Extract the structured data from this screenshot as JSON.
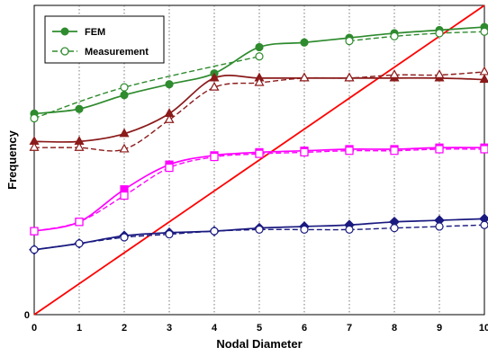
{
  "chart_data": {
    "type": "line",
    "xlabel": "Nodal Diameter",
    "ylabel": "Frequency",
    "xlim": [
      0,
      10
    ],
    "ylim": [
      0,
      100
    ],
    "x_ticks": [
      "0",
      "1",
      "2",
      "3",
      "4",
      "5",
      "6",
      "7",
      "8",
      "9",
      "10"
    ],
    "y_ticks": [
      "0"
    ],
    "grid": "vertical dotted lines at each nodal diameter",
    "legend_position": "top-left",
    "legend": [
      {
        "label": "FEM",
        "style": "solid",
        "marker": "filled-circle",
        "color": "#2e8b2e"
      },
      {
        "label": "Measurement",
        "style": "dashed",
        "marker": "open-circle",
        "color": "#2e8b2e"
      }
    ],
    "series": [
      {
        "family": "green",
        "kind": "FEM",
        "color": "#2e8b2e",
        "marker": "filled-circle",
        "x": [
          0,
          1,
          2,
          3,
          4,
          5,
          6,
          7,
          8,
          9,
          10
        ],
        "y": [
          65,
          66.5,
          71,
          74.5,
          78,
          86.5,
          88,
          89.5,
          91,
          92,
          93
        ]
      },
      {
        "family": "green",
        "kind": "Measurement",
        "color": "#2e8b2e",
        "marker": "open-circle",
        "x": [
          0,
          2,
          5
        ],
        "y": [
          63.5,
          73.5,
          83.5
        ],
        "x2": [
          7,
          8,
          9,
          10
        ],
        "y2": [
          88.5,
          90,
          91,
          91.5
        ]
      },
      {
        "family": "darkred",
        "kind": "FEM",
        "color": "#8b1a1a",
        "marker": "filled-triangle",
        "x": [
          0,
          1,
          2,
          3,
          4,
          5,
          6,
          7,
          8,
          9,
          10
        ],
        "y": [
          56,
          56,
          58.5,
          65,
          76.5,
          76.5,
          76.5,
          76.5,
          76.5,
          76.5,
          76
        ]
      },
      {
        "family": "darkred",
        "kind": "Measurement",
        "color": "#8b1a1a",
        "marker": "open-triangle",
        "x": [
          0,
          1,
          2,
          3,
          4,
          5,
          6,
          7,
          8,
          9,
          10
        ],
        "y": [
          54,
          54,
          53.5,
          63,
          73.5,
          75,
          76.5,
          76.5,
          77.5,
          77.5,
          78.5
        ]
      },
      {
        "family": "magenta",
        "kind": "FEM",
        "color": "#ff00ff",
        "marker": "filled-square",
        "x": [
          0,
          1,
          2,
          3,
          4,
          5,
          6,
          7,
          8,
          9,
          10
        ],
        "y": [
          27,
          30,
          40.5,
          48.5,
          51.5,
          52.5,
          53,
          53.5,
          53.5,
          54,
          54
        ]
      },
      {
        "family": "magenta",
        "kind": "Measurement",
        "color": "#ff00ff",
        "marker": "open-square",
        "x": [
          0,
          1,
          2,
          3,
          4,
          5,
          6,
          7,
          8,
          9,
          10
        ],
        "y": [
          27,
          30,
          38.5,
          47.5,
          51,
          52,
          52.5,
          53,
          53,
          53.5,
          53.5
        ]
      },
      {
        "family": "navy",
        "kind": "FEM",
        "color": "#1a1a80",
        "marker": "filled-diamond",
        "x": [
          0,
          1,
          2,
          3,
          4,
          5,
          6,
          7,
          8,
          9,
          10
        ],
        "y": [
          21,
          23,
          25.5,
          26.5,
          27,
          28,
          28.5,
          29,
          30,
          30.5,
          31
        ]
      },
      {
        "family": "navy",
        "kind": "Measurement",
        "color": "#1a1a80",
        "marker": "open-circle",
        "x": [
          0,
          1,
          2,
          3,
          4,
          5,
          6,
          7,
          8,
          9,
          10
        ],
        "y": [
          21,
          23,
          25,
          26,
          27,
          27.5,
          27.5,
          27.5,
          28,
          28.5,
          29
        ]
      },
      {
        "family": "red",
        "kind": "line",
        "color": "#ff0000",
        "marker": "none",
        "x": [
          0,
          10
        ],
        "y": [
          0,
          100
        ]
      }
    ]
  }
}
